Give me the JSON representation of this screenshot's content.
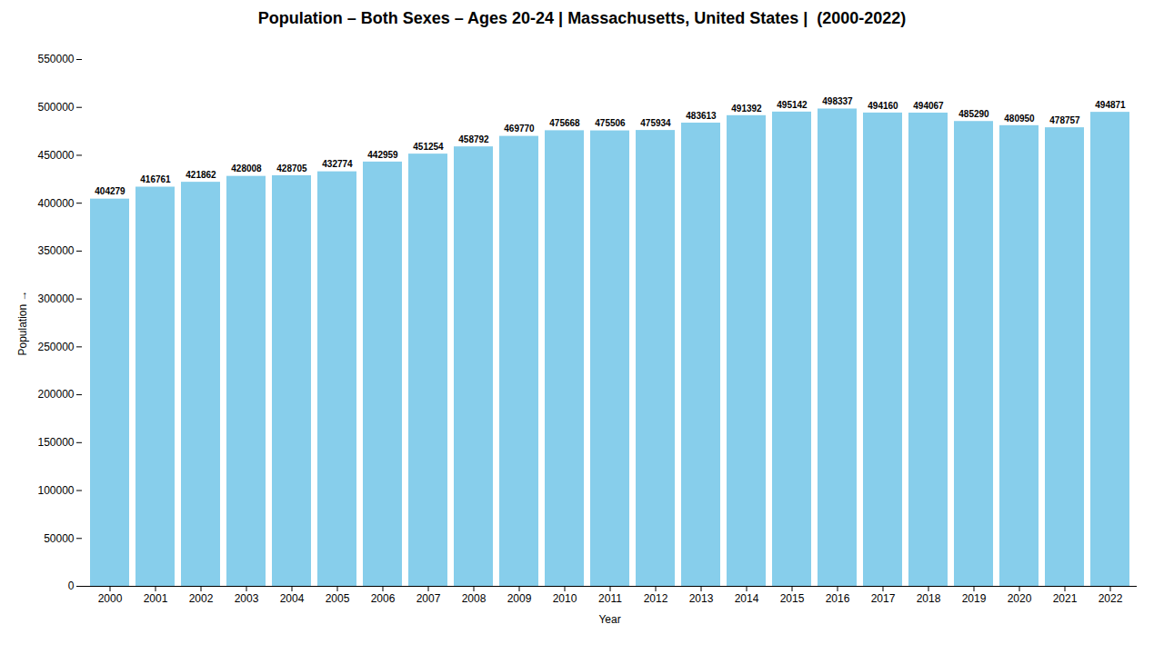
{
  "chart_data": {
    "type": "bar",
    "title": "Population – Both Sexes – Ages 20-24 | Massachusetts, United States |  (2000-2022)",
    "x_label": "Year",
    "y_label": "Population",
    "categories": [
      "2000",
      "2001",
      "2002",
      "2003",
      "2004",
      "2005",
      "2006",
      "2007",
      "2008",
      "2009",
      "2010",
      "2011",
      "2012",
      "2013",
      "2014",
      "2015",
      "2016",
      "2017",
      "2018",
      "2019",
      "2020",
      "2021",
      "2022"
    ],
    "values": [
      404279,
      416761,
      421862,
      428008,
      428705,
      432774,
      442959,
      451254,
      458792,
      469770,
      475668,
      475506,
      475934,
      483613,
      491392,
      495142,
      498337,
      494160,
      494067,
      485290,
      480950,
      478757,
      494871
    ],
    "color": "#87CEEB",
    "ylim": [
      0,
      550000
    ],
    "yticks": [
      0,
      50000,
      100000,
      150000,
      200000,
      250000,
      300000,
      350000,
      400000,
      450000,
      500000,
      550000
    ],
    "grid": false,
    "data_labels": true
  }
}
